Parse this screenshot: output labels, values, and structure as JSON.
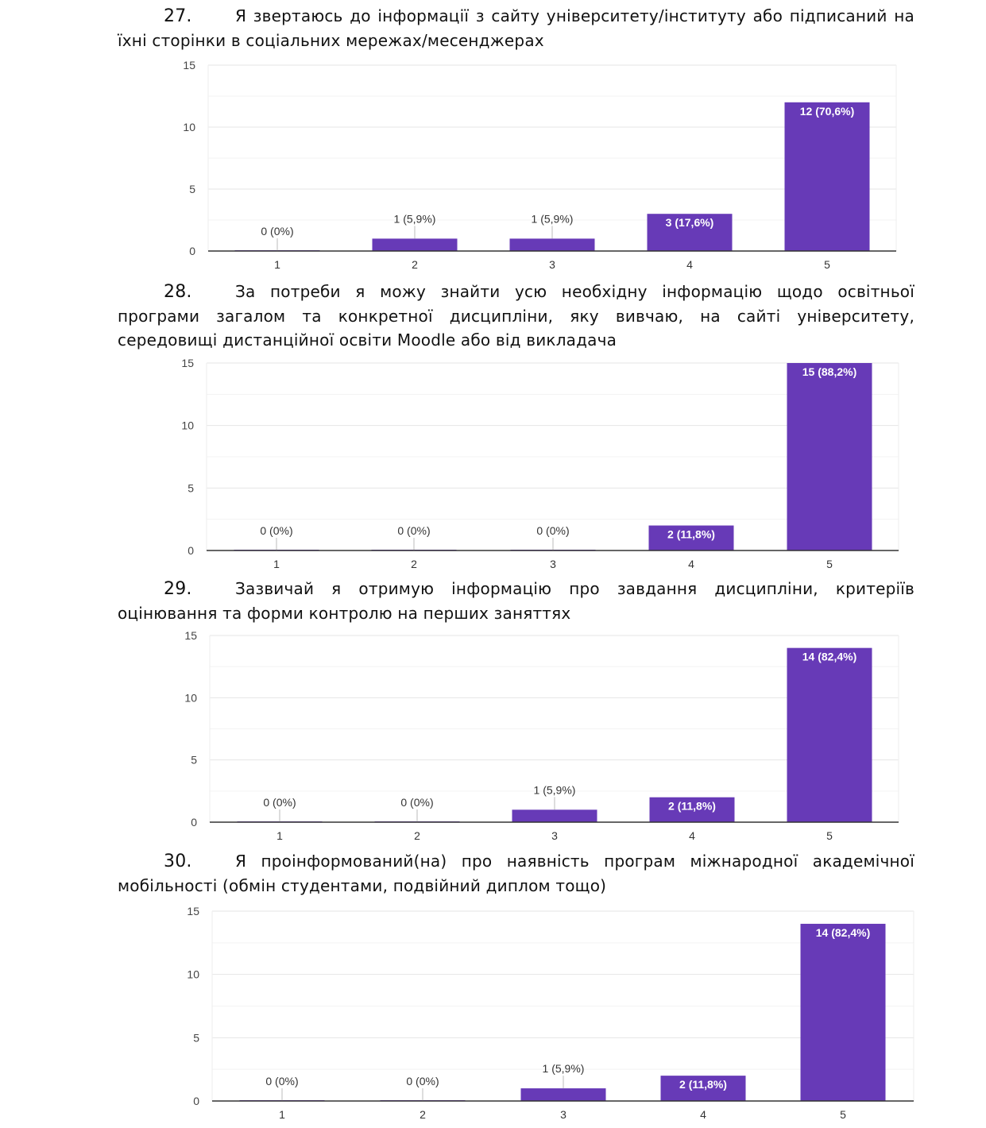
{
  "accent_color": "#673ab7",
  "questions": [
    {
      "number": "27.",
      "text": "Я звертаюсь до інформації з сайту університету/інституту або підписаний на їхні сторінки в соціальних мережах/месенджерах"
    },
    {
      "number": "28.",
      "text": "За потреби я можу знайти усю необхідну інформацію щодо освітньої програми загалом та конкретної дисципліни, яку вивчаю, на сайті університету, середовищі дистанційної освіти Moodle або від викладача"
    },
    {
      "number": "29.",
      "text": "Зазвичай я отримую інформацію про завдання дисципліни, критеріїв оцінювання та форми контролю на перших заняттях"
    },
    {
      "number": "30.",
      "text": "Я проінформований(на) про наявність програм міжнародної академічної мобільності (обмін студентами, подвійний диплом тощо)"
    }
  ],
  "chart_data": [
    {
      "type": "bar",
      "categories": [
        "1",
        "2",
        "3",
        "4",
        "5"
      ],
      "values": [
        0,
        1,
        1,
        3,
        12
      ],
      "labels": [
        "0 (0%)",
        "1 (5,9%)",
        "1 (5,9%)",
        "3 (17,6%)",
        "12 (70,6%)"
      ],
      "yticks": [
        "0",
        "5",
        "10",
        "15"
      ],
      "ylim": [
        0,
        15
      ]
    },
    {
      "type": "bar",
      "categories": [
        "1",
        "2",
        "3",
        "4",
        "5"
      ],
      "values": [
        0,
        0,
        0,
        2,
        15
      ],
      "labels": [
        "0 (0%)",
        "0 (0%)",
        "0 (0%)",
        "2 (11,8%)",
        "15 (88,2%)"
      ],
      "yticks": [
        "0",
        "5",
        "10",
        "15"
      ],
      "ylim": [
        0,
        15
      ]
    },
    {
      "type": "bar",
      "categories": [
        "1",
        "2",
        "3",
        "4",
        "5"
      ],
      "values": [
        0,
        0,
        1,
        2,
        14
      ],
      "labels": [
        "0 (0%)",
        "0 (0%)",
        "1 (5,9%)",
        "2 (11,8%)",
        "14 (82,4%)"
      ],
      "yticks": [
        "0",
        "5",
        "10",
        "15"
      ],
      "ylim": [
        0,
        15
      ]
    },
    {
      "type": "bar",
      "categories": [
        "1",
        "2",
        "3",
        "4",
        "5"
      ],
      "values": [
        0,
        0,
        1,
        2,
        14
      ],
      "labels": [
        "0 (0%)",
        "0 (0%)",
        "1 (5,9%)",
        "2 (11,8%)",
        "14 (82,4%)"
      ],
      "yticks": [
        "0",
        "5",
        "10",
        "15"
      ],
      "ylim": [
        0,
        15
      ]
    }
  ]
}
